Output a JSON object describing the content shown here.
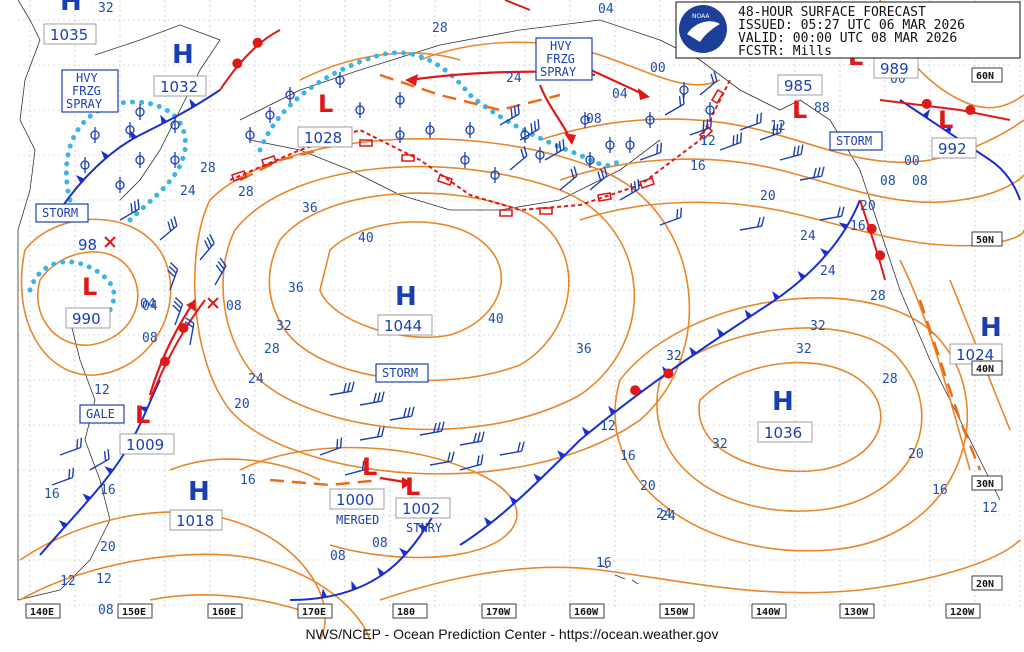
{
  "header": {
    "title": "48-HOUR SURFACE FORECAST",
    "issued": "ISSUED: 05:27 UTC 06 MAR 2026",
    "valid": "VALID:  00:00 UTC 08 MAR 2026",
    "forecaster": "FCSTR:  Mills",
    "logo_text": "NOAA"
  },
  "footer": "NWS/NCEP - Ocean Prediction Center - https://ocean.weather.gov",
  "longitude_labels": [
    "140E",
    "150E",
    "160E",
    "170E",
    "180",
    "170W",
    "160W",
    "150W",
    "140W",
    "130W",
    "120W"
  ],
  "latitude_labels": [
    "60N",
    "50N",
    "40N",
    "30N",
    "20N"
  ],
  "highs": [
    {
      "label": "H",
      "pressure": "1035"
    },
    {
      "label": "H",
      "pressure": "1032"
    },
    {
      "label": "H",
      "pressure": "1044"
    },
    {
      "label": "H",
      "pressure": "1036"
    },
    {
      "label": "H",
      "pressure": "1024"
    },
    {
      "label": "H",
      "pressure": "1018"
    },
    {
      "label": "H",
      "pressure": "1028"
    }
  ],
  "lows": [
    {
      "label": "L",
      "pressure": "990"
    },
    {
      "label": "L",
      "pressure": "1009"
    },
    {
      "label": "L",
      "pressure": "1000"
    },
    {
      "label": "L",
      "pressure": "1002"
    },
    {
      "label": "L",
      "pressure": "985"
    },
    {
      "label": "L",
      "pressure": "992"
    },
    {
      "label": "L",
      "pressure": "989"
    },
    {
      "label": "L",
      "pressure": "98"
    }
  ],
  "warnings": {
    "hvy_frzg_spray_1": [
      "HVY",
      "FRZG",
      "SPRAY"
    ],
    "hvy_frzg_spray_2": [
      "HVY",
      "FRZG",
      "SPRAY"
    ],
    "storm_west": "STORM",
    "storm_central": "STORM",
    "storm_east": "STORM",
    "gale": "GALE",
    "merged": "MERGED",
    "stnry": "STNRY"
  },
  "point_labels": {
    "x_08": "08",
    "l_88": "88"
  },
  "isobar_labels": [
    "32",
    "28",
    "28",
    "24",
    "28",
    "32",
    "36",
    "40",
    "36",
    "40",
    "36",
    "32",
    "28",
    "24",
    "20",
    "16",
    "16",
    "12",
    "08",
    "04",
    "00",
    "04",
    "08",
    "12",
    "16",
    "20",
    "24",
    "28",
    "32",
    "32",
    "24",
    "20",
    "16",
    "12",
    "08",
    "04",
    "08",
    "12",
    "16",
    "20",
    "24",
    "16",
    "12",
    "08",
    "00",
    "04",
    "08",
    "12",
    "16",
    "20",
    "24",
    "28",
    "32",
    "24",
    "20",
    "16",
    "12",
    "00",
    "08"
  ]
}
